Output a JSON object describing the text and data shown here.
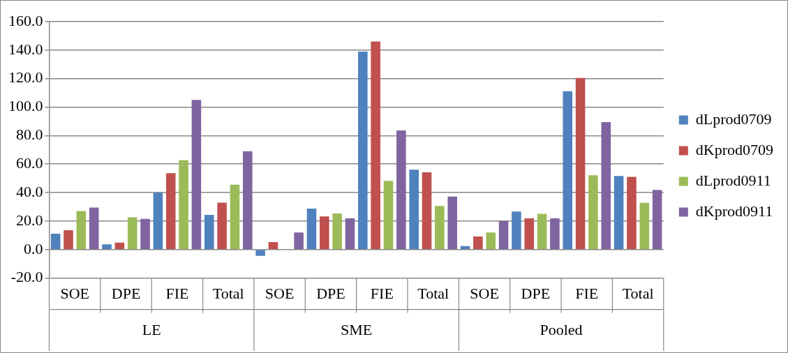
{
  "chart_data": {
    "type": "bar",
    "categories": [
      "SOE",
      "DPE",
      "FIE",
      "Total",
      "SOE",
      "DPE",
      "FIE",
      "Total",
      "SOE",
      "DPE",
      "FIE",
      "Total"
    ],
    "annotations": [
      "LE",
      "SME",
      "Pooled"
    ],
    "series": [
      {
        "name": "dLprod0709",
        "color": "#4f81bd",
        "values": [
          11.2,
          3.7,
          39.9,
          24.4,
          -4.4,
          28.8,
          139.0,
          56.1,
          2.5,
          26.7,
          111.2,
          51.7
        ]
      },
      {
        "name": "dKprod0709",
        "color": "#c0504d",
        "values": [
          13.6,
          4.9,
          53.6,
          32.9,
          5.3,
          23.3,
          146.1,
          54.2,
          9.2,
          21.9,
          120.4,
          51.0
        ]
      },
      {
        "name": "dLprod0911",
        "color": "#9bbb59",
        "values": [
          27.0,
          22.6,
          62.8,
          45.5,
          0,
          25.3,
          48.2,
          30.6,
          12.0,
          25.1,
          52.1,
          32.8
        ]
      },
      {
        "name": "dKprod0911",
        "color": "#8064a2",
        "values": [
          29.5,
          21.6,
          105.0,
          69.1,
          12.0,
          21.9,
          83.6,
          37.2,
          19.9,
          21.9,
          89.5,
          41.9
        ]
      }
    ],
    "ylim": [
      -20,
      160
    ],
    "yticks": [
      {
        "value": -20,
        "label": "-20.0"
      },
      {
        "value": 0,
        "label": "0.0"
      },
      {
        "value": 20,
        "label": "20.0"
      },
      {
        "value": 40,
        "label": "40.0"
      },
      {
        "value": 60,
        "label": "60.0"
      },
      {
        "value": 80,
        "label": "80.0"
      },
      {
        "value": 100,
        "label": "100.0"
      },
      {
        "value": 120,
        "label": "120.0"
      },
      {
        "value": 140,
        "label": "140.0"
      },
      {
        "value": 160,
        "label": "160.0"
      }
    ],
    "grid": "y",
    "legend": "right"
  }
}
